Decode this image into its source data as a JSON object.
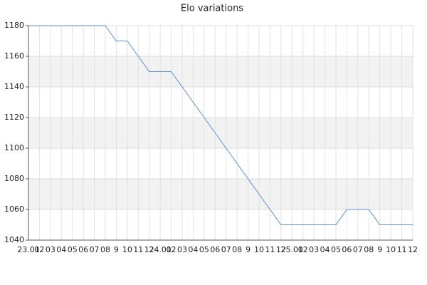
{
  "chart_data": {
    "type": "line",
    "title": "Elo variations",
    "categories": [
      "23.01",
      "02",
      "03",
      "04",
      "05",
      "06",
      "07",
      "08",
      "9",
      "10",
      "11",
      "12",
      "24.01",
      "02",
      "03",
      "04",
      "05",
      "06",
      "07",
      "08",
      "9",
      "10",
      "11",
      "12",
      "25.01",
      "02",
      "03",
      "04",
      "05",
      "06",
      "07",
      "08",
      "9",
      "10",
      "11",
      "12"
    ],
    "values": [
      1180,
      1180,
      1180,
      1180,
      1180,
      1180,
      1180,
      1180,
      1170,
      1170,
      1160,
      1150,
      1150,
      1150,
      1140,
      1130,
      1120,
      1110,
      1100,
      1090,
      1080,
      1070,
      1060,
      1050,
      1050,
      1050,
      1050,
      1050,
      1050,
      1060,
      1060,
      1060,
      1050,
      1050,
      1050,
      1050
    ],
    "color": "#5b8fd6",
    "ylim": [
      1040,
      1180
    ],
    "yticks": [
      1040,
      1060,
      1080,
      1100,
      1120,
      1140,
      1160,
      1180
    ],
    "grid": true
  }
}
